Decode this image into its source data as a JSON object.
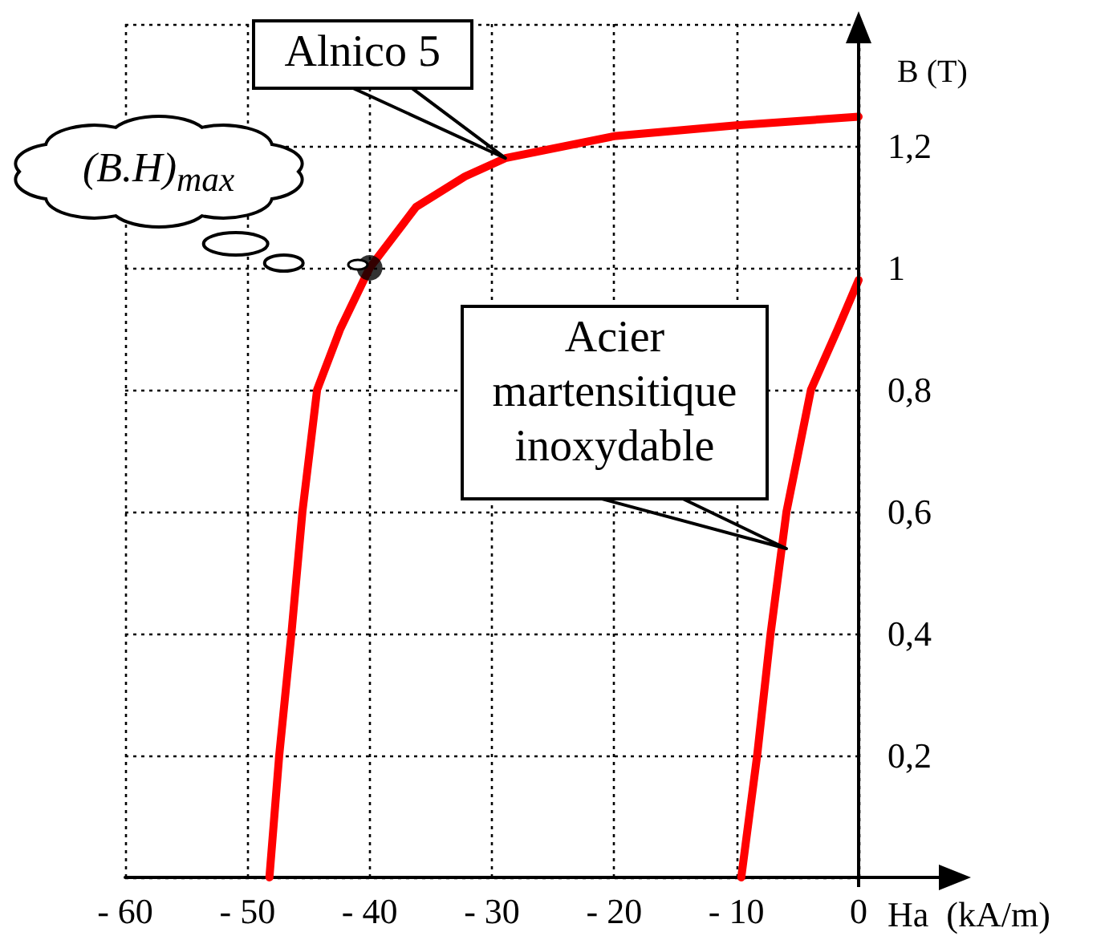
{
  "chart_data": {
    "type": "line",
    "xlabel": "Ha  (kA/m)",
    "ylabel": "B (T)",
    "xlim": [
      -60,
      0
    ],
    "ylim": [
      0,
      1.4
    ],
    "xticks": [
      {
        "value": -60,
        "label": "- 60"
      },
      {
        "value": -50,
        "label": "- 50"
      },
      {
        "value": -40,
        "label": "- 40"
      },
      {
        "value": -30,
        "label": "- 30"
      },
      {
        "value": -20,
        "label": "- 20"
      },
      {
        "value": -10,
        "label": "- 10"
      },
      {
        "value": 0,
        "label": "0"
      }
    ],
    "yticks": [
      {
        "value": 0,
        "label": null
      },
      {
        "value": 0.2,
        "label": "0,2"
      },
      {
        "value": 0.4,
        "label": "0,4"
      },
      {
        "value": 0.6,
        "label": "0,6"
      },
      {
        "value": 0.8,
        "label": "0,8"
      },
      {
        "value": 1,
        "label": "1"
      },
      {
        "value": 1.2,
        "label": "1,2"
      },
      {
        "value": 1.4,
        "label": null
      }
    ],
    "grid": true,
    "marker": "none",
    "line_style": "solid",
    "series": [
      {
        "color": "#ff0000",
        "x": [
          -48.2,
          -47.4,
          -46.4,
          -45.5,
          -44.3,
          -42.4,
          -40,
          -36.2,
          -32.2,
          -28.9,
          -20,
          -10,
          0
        ],
        "values": [
          0,
          0.2,
          0.4,
          0.6,
          0.8,
          0.9,
          1,
          1.1,
          1.15,
          1.18,
          1.216,
          1.234,
          1.248
        ]
      },
      {
        "color": "#ff0000",
        "x": [
          -9.6,
          -8.3,
          -7.2,
          -5.9,
          -3.9,
          -1.7,
          0
        ],
        "values": [
          0,
          0.2,
          0.4,
          0.6,
          0.8,
          0.9,
          0.98
        ]
      },
      {
        "type": "scatter",
        "marker": "circle",
        "color": "#000000",
        "x": [
          -40
        ],
        "values": [
          1
        ]
      }
    ],
    "annotations": [
      {
        "text": "Alnico 5",
        "x": -28.9,
        "y": 1.18
      },
      "(B.H)$_{max}$",
      "Acier\nmartensitique\ninoxydable"
    ]
  }
}
